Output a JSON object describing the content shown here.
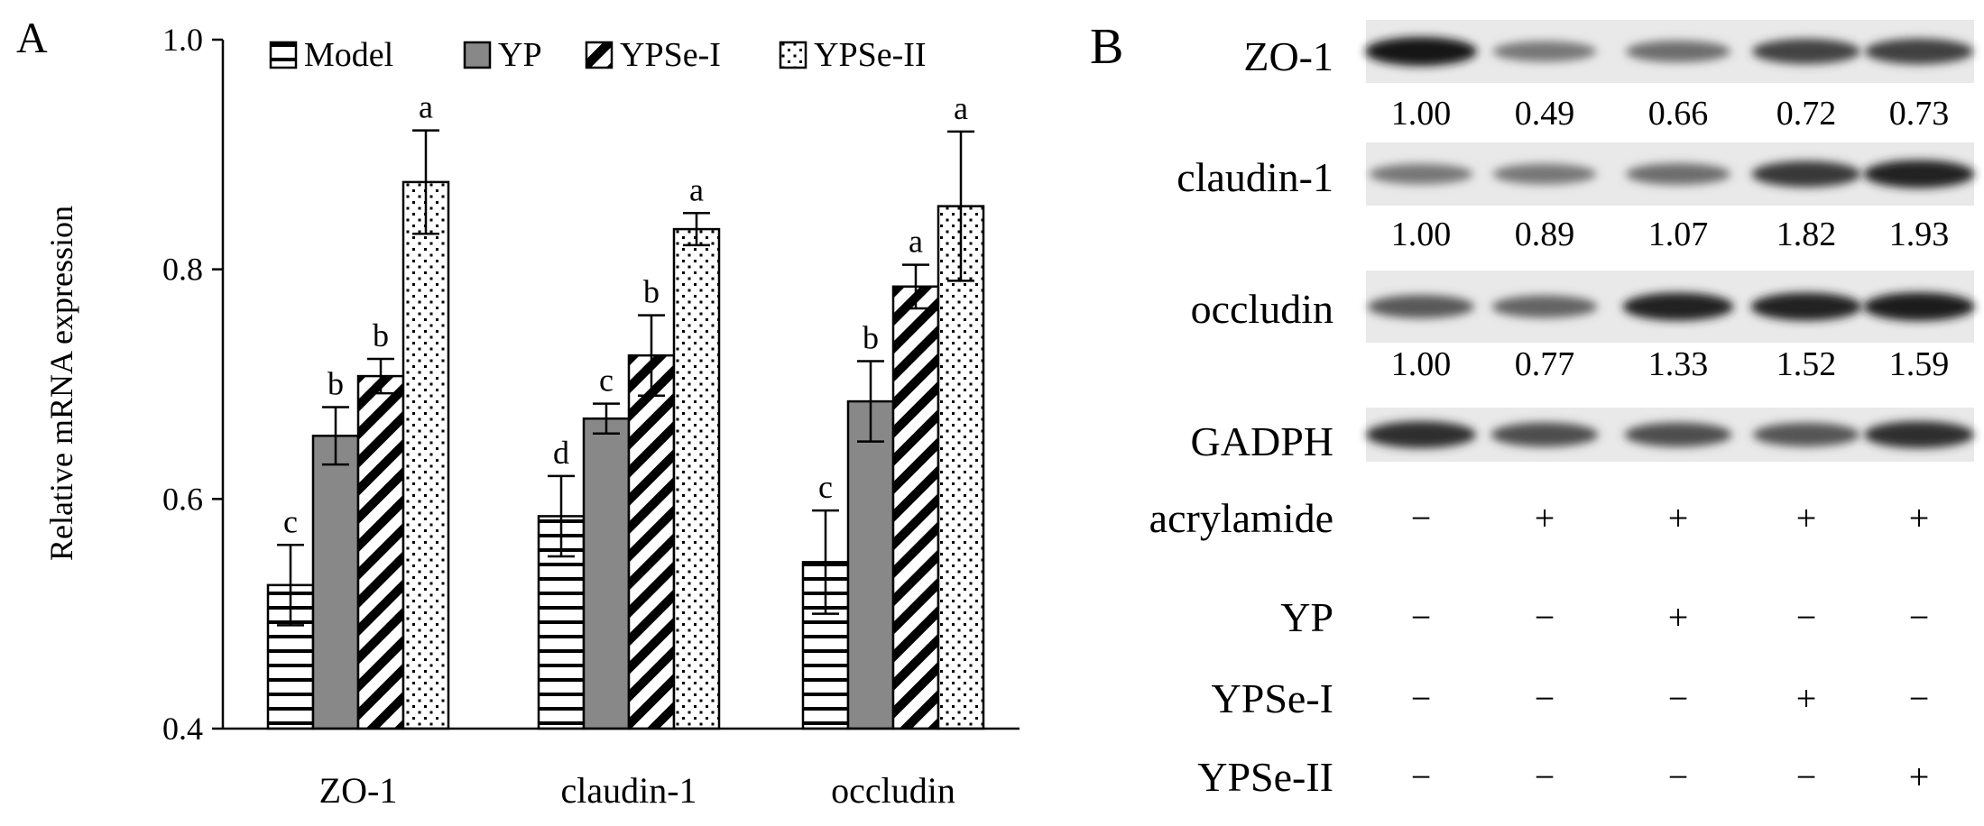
{
  "panel_a_label": "A",
  "panel_b_label": "B",
  "chart_data": {
    "type": "bar",
    "title": "",
    "xlabel": "",
    "ylabel": "Relative mRNA expression",
    "ylim": [
      0.4,
      1.0
    ],
    "yticks": [
      0.4,
      0.6,
      0.8,
      1.0
    ],
    "ytick_labels": [
      "0.4",
      "0.6",
      "0.8",
      "1.0"
    ],
    "categories": [
      "ZO-1",
      "claudin-1",
      "occludin"
    ],
    "legend_position": "top",
    "series": [
      {
        "name": "Model",
        "pattern": "horizontal-lines",
        "color": "#ffffff",
        "values": [
          0.525,
          0.585,
          0.545
        ],
        "errors": [
          0.035,
          0.035,
          0.045
        ],
        "letters": [
          "c",
          "d",
          "c"
        ]
      },
      {
        "name": "YP",
        "pattern": "solid-gray",
        "color": "#888888",
        "values": [
          0.655,
          0.67,
          0.685
        ],
        "errors": [
          0.025,
          0.013,
          0.035
        ],
        "letters": [
          "b",
          "c",
          "b"
        ]
      },
      {
        "name": "YPSe-I",
        "pattern": "diagonal-stripes",
        "color": "#ffffff",
        "values": [
          0.707,
          0.725,
          0.785
        ],
        "errors": [
          0.015,
          0.035,
          0.019
        ],
        "letters": [
          "b",
          "b",
          "a"
        ]
      },
      {
        "name": "YPSe-II",
        "pattern": "dots",
        "color": "#ffffff",
        "values": [
          0.876,
          0.835,
          0.855
        ],
        "errors": [
          0.045,
          0.014,
          0.065
        ],
        "letters": [
          "a",
          "a",
          "a"
        ]
      }
    ]
  },
  "blot": {
    "proteins": [
      {
        "name": "ZO-1",
        "values": [
          "1.00",
          "0.49",
          "0.66",
          "0.72",
          "0.73"
        ],
        "intensity": [
          1.0,
          0.55,
          0.6,
          0.8,
          0.82
        ]
      },
      {
        "name": "claudin-1",
        "values": [
          "1.00",
          "0.89",
          "1.07",
          "1.82",
          "1.93"
        ],
        "intensity": [
          0.55,
          0.55,
          0.6,
          0.85,
          0.95
        ]
      },
      {
        "name": "occludin",
        "values": [
          "1.00",
          "0.77",
          "1.33",
          "1.52",
          "1.59"
        ],
        "intensity": [
          0.7,
          0.65,
          0.95,
          0.95,
          0.98
        ]
      },
      {
        "name": "GADPH",
        "values": [],
        "intensity": [
          0.9,
          0.75,
          0.75,
          0.72,
          0.9
        ]
      }
    ],
    "treatments": [
      {
        "name": "acrylamide",
        "signs": [
          "−",
          "+",
          "+",
          "+",
          "+"
        ]
      },
      {
        "name": "YP",
        "signs": [
          "−",
          "−",
          "+",
          "−",
          "−"
        ]
      },
      {
        "name": "YPSe-I",
        "signs": [
          "−",
          "−",
          "−",
          "+",
          "−"
        ]
      },
      {
        "name": "YPSe-II",
        "signs": [
          "−",
          "−",
          "−",
          "−",
          "+"
        ]
      }
    ]
  }
}
